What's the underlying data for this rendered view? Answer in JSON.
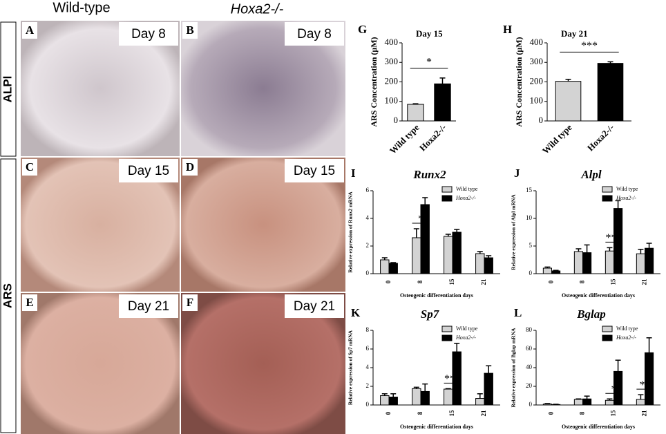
{
  "photos": {
    "column_titles": [
      "Wild-type",
      "Hoxa2-/-"
    ],
    "row_titles": [
      "ALPl",
      "ARS"
    ],
    "panels": [
      {
        "letter": "A",
        "day": "Day 8"
      },
      {
        "letter": "B",
        "day": "Day 8"
      },
      {
        "letter": "C",
        "day": "Day 15"
      },
      {
        "letter": "D",
        "day": "Day 15"
      },
      {
        "letter": "E",
        "day": "Day 21"
      },
      {
        "letter": "F",
        "day": "Day 21"
      }
    ]
  },
  "chart_data": [
    {
      "type": "bar",
      "letter": "G",
      "title": "Day 15",
      "ylabel": "ARS Concentration (μM)",
      "categories": [
        "Wild type",
        "Hoxa2-/-"
      ],
      "values": [
        85,
        190
      ],
      "errors": [
        3,
        30
      ],
      "colors": [
        "#d3d3d3",
        "#000000"
      ],
      "ylim": [
        0,
        400
      ],
      "yticks": [
        0,
        100,
        200,
        300,
        400
      ],
      "significance": "*"
    },
    {
      "type": "bar",
      "letter": "H",
      "title": "Day 21",
      "ylabel": "ARS Concentration (μM)",
      "categories": [
        "Wild type",
        "Hoxa2-/-"
      ],
      "values": [
        203,
        295
      ],
      "errors": [
        10,
        8
      ],
      "colors": [
        "#d3d3d3",
        "#000000"
      ],
      "ylim": [
        0,
        400
      ],
      "yticks": [
        0,
        100,
        200,
        300,
        400
      ],
      "significance": "***"
    },
    {
      "type": "bar",
      "letter": "I",
      "title": "Runx2",
      "ylabel": "Relative expression of Runx2 mRNA",
      "xlabel": "Osteogenic differentiation days",
      "categories": [
        "0",
        "8",
        "15",
        "21"
      ],
      "ylim": [
        0,
        6
      ],
      "yticks": [
        0,
        2,
        4,
        6
      ],
      "series": [
        {
          "name": "Wild type",
          "color": "#d3d3d3",
          "values": [
            1.0,
            2.6,
            2.7,
            1.45
          ],
          "errors": [
            0.15,
            0.65,
            0.15,
            0.15
          ]
        },
        {
          "name": "Hoxa2-/-",
          "color": "#000000",
          "values": [
            0.75,
            5.0,
            3.0,
            1.15
          ],
          "errors": [
            0.05,
            0.5,
            0.2,
            0.15
          ]
        }
      ],
      "significance": [
        null,
        "*",
        null,
        null
      ]
    },
    {
      "type": "bar",
      "letter": "J",
      "title": "Alpl",
      "ylabel": "Relative expression of Alpl mRNA",
      "xlabel": "Osteogenic differentiation days",
      "categories": [
        "0",
        "8",
        "15",
        "21"
      ],
      "ylim": [
        0,
        15
      ],
      "yticks": [
        0,
        5,
        10,
        15
      ],
      "series": [
        {
          "name": "Wild type",
          "color": "#d3d3d3",
          "values": [
            1.0,
            4.0,
            4.1,
            3.6
          ],
          "errors": [
            0.2,
            0.5,
            0.6,
            0.8
          ]
        },
        {
          "name": "Hoxa2-/-",
          "color": "#000000",
          "values": [
            0.5,
            3.8,
            11.8,
            4.6
          ],
          "errors": [
            0.1,
            1.4,
            1.4,
            0.9
          ]
        }
      ],
      "significance": [
        null,
        null,
        "***",
        null
      ]
    },
    {
      "type": "bar",
      "letter": "K",
      "title": "Sp7",
      "ylabel": "Relative expression of Sp7 mRNA",
      "xlabel": "Osteogenic differentiation days",
      "categories": [
        "0",
        "8",
        "15",
        "21"
      ],
      "ylim": [
        0,
        8
      ],
      "yticks": [
        0,
        2,
        4,
        6,
        8
      ],
      "series": [
        {
          "name": "Wild type",
          "color": "#d3d3d3",
          "values": [
            1.0,
            1.75,
            1.7,
            0.7
          ],
          "errors": [
            0.2,
            0.15,
            0.05,
            0.5
          ]
        },
        {
          "name": "Hoxa2-/-",
          "color": "#000000",
          "values": [
            0.85,
            1.45,
            5.7,
            3.4
          ],
          "errors": [
            0.35,
            0.8,
            0.9,
            0.8
          ]
        }
      ],
      "significance": [
        null,
        null,
        "***",
        null
      ]
    },
    {
      "type": "bar",
      "letter": "L",
      "title": "Bglap",
      "ylabel": "Relative expression of Bglap mRNA",
      "xlabel": "Osteogenic differentiation days",
      "categories": [
        "0",
        "8",
        "15",
        "21"
      ],
      "ylim": [
        0,
        80
      ],
      "yticks": [
        0,
        20,
        40,
        60,
        80
      ],
      "series": [
        {
          "name": "Wild type",
          "color": "#d3d3d3",
          "values": [
            1,
            6,
            5,
            6
          ],
          "errors": [
            0.5,
            0.5,
            1.5,
            5
          ]
        },
        {
          "name": "Hoxa2-/-",
          "color": "#000000",
          "values": [
            0.5,
            6.5,
            36,
            56
          ],
          "errors": [
            0.3,
            3,
            12,
            16
          ]
        }
      ],
      "significance": [
        null,
        null,
        "*",
        "**"
      ]
    }
  ]
}
